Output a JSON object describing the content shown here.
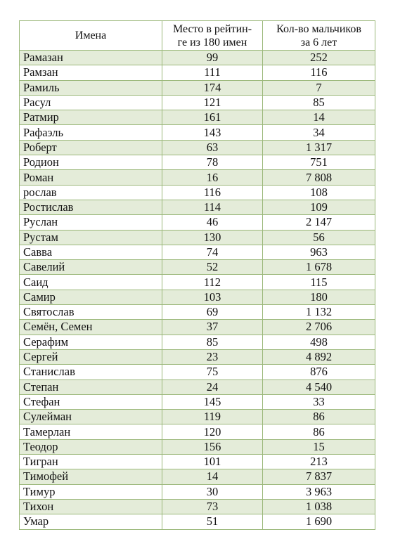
{
  "table": {
    "headers": {
      "name": "Имена",
      "rank": [
        "Место в рейтин-",
        "ге из 180 имен"
      ],
      "count": [
        "Кол-во мальчиков",
        "за 6 лет"
      ]
    },
    "rows": [
      {
        "name": "Рамазан",
        "rank": "99",
        "count": "252"
      },
      {
        "name": "Рамзан",
        "rank": "111",
        "count": "116"
      },
      {
        "name": "Рамиль",
        "rank": "174",
        "count": "7"
      },
      {
        "name": "Расул",
        "rank": "121",
        "count": "85"
      },
      {
        "name": "Ратмир",
        "rank": "161",
        "count": "14"
      },
      {
        "name": "Рафаэль",
        "rank": "143",
        "count": "34"
      },
      {
        "name": "Роберт",
        "rank": "63",
        "count": "1 317"
      },
      {
        "name": "Родион",
        "rank": "78",
        "count": "751"
      },
      {
        "name": "Роман",
        "rank": "16",
        "count": "7 808"
      },
      {
        "name": "рослав",
        "rank": "116",
        "count": "108"
      },
      {
        "name": "Ростислав",
        "rank": "114",
        "count": "109"
      },
      {
        "name": "Руслан",
        "rank": "46",
        "count": "2 147"
      },
      {
        "name": "Рустам",
        "rank": "130",
        "count": "56"
      },
      {
        "name": "Савва",
        "rank": "74",
        "count": "963"
      },
      {
        "name": "Савелий",
        "rank": "52",
        "count": "1 678"
      },
      {
        "name": "Саид",
        "rank": "112",
        "count": "115"
      },
      {
        "name": "Самир",
        "rank": "103",
        "count": "180"
      },
      {
        "name": "Святослав",
        "rank": "69",
        "count": "1 132"
      },
      {
        "name": "Семён, Семен",
        "rank": "37",
        "count": "2 706"
      },
      {
        "name": "Серафим",
        "rank": "85",
        "count": "498"
      },
      {
        "name": "Сергей",
        "rank": "23",
        "count": "4 892"
      },
      {
        "name": "Станислав",
        "rank": "75",
        "count": "876"
      },
      {
        "name": "Степан",
        "rank": "24",
        "count": "4 540"
      },
      {
        "name": "Стефан",
        "rank": "145",
        "count": "33"
      },
      {
        "name": "Сулейман",
        "rank": "119",
        "count": "86"
      },
      {
        "name": "Тамерлан",
        "rank": "120",
        "count": "86"
      },
      {
        "name": "Теодор",
        "rank": "156",
        "count": "15"
      },
      {
        "name": "Тигран",
        "rank": "101",
        "count": "213"
      },
      {
        "name": "Тимофей",
        "rank": "14",
        "count": "7 837"
      },
      {
        "name": "Тимур",
        "rank": "30",
        "count": "3 963"
      },
      {
        "name": "Тихон",
        "rank": "73",
        "count": "1 038"
      },
      {
        "name": "Умар",
        "rank": "51",
        "count": "1 690"
      }
    ]
  }
}
